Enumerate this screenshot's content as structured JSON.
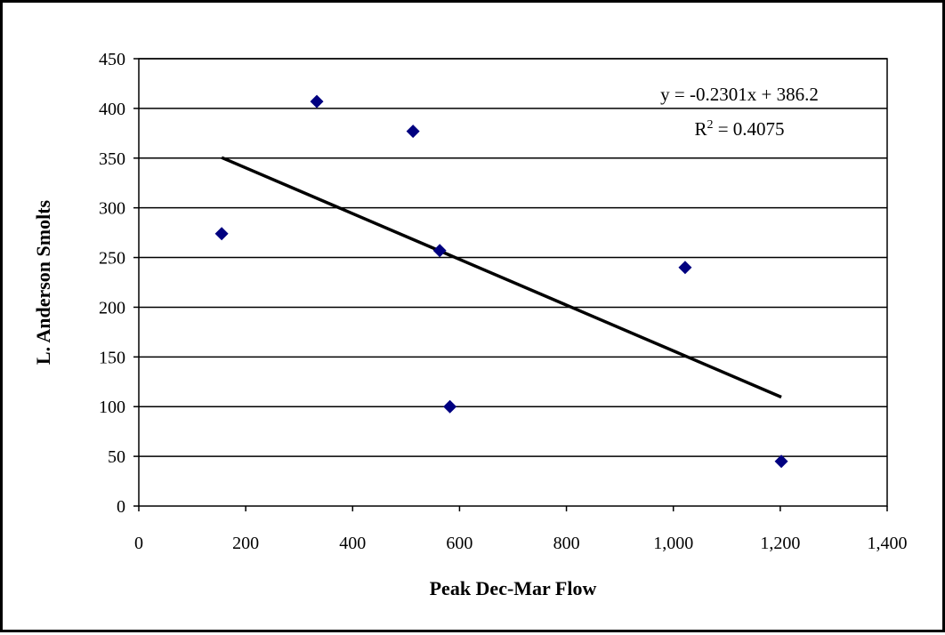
{
  "chart_data": {
    "type": "scatter",
    "xlabel": "Peak Dec-Mar Flow",
    "ylabel": "L. Anderson Smolts",
    "xlim": [
      0,
      1400
    ],
    "ylim": [
      0,
      450
    ],
    "x_ticks": [
      "0",
      "200",
      "400",
      "600",
      "800",
      "1,000",
      "1,200",
      "1,400"
    ],
    "x_tick_values": [
      0,
      200,
      400,
      600,
      800,
      1000,
      1200,
      1400
    ],
    "y_ticks": [
      "0",
      "50",
      "100",
      "150",
      "200",
      "250",
      "300",
      "350",
      "400",
      "450"
    ],
    "y_tick_values": [
      0,
      50,
      100,
      150,
      200,
      250,
      300,
      350,
      400,
      450
    ],
    "grid": {
      "horizontal": true,
      "vertical": false
    },
    "points": [
      {
        "x": 155,
        "y": 274
      },
      {
        "x": 333,
        "y": 407
      },
      {
        "x": 513,
        "y": 377
      },
      {
        "x": 563,
        "y": 257
      },
      {
        "x": 582,
        "y": 100
      },
      {
        "x": 1022,
        "y": 240
      },
      {
        "x": 1202,
        "y": 45
      }
    ],
    "point_color": "#000080",
    "trendline": {
      "slope": -0.2301,
      "intercept": 386.2,
      "x_range": [
        155,
        1202
      ],
      "color": "#000000",
      "equation_text": "y = -0.2301x + 386.2",
      "r2_prefix": "R",
      "r2_sup": "2",
      "r2_suffix": " = 0.4075"
    }
  }
}
